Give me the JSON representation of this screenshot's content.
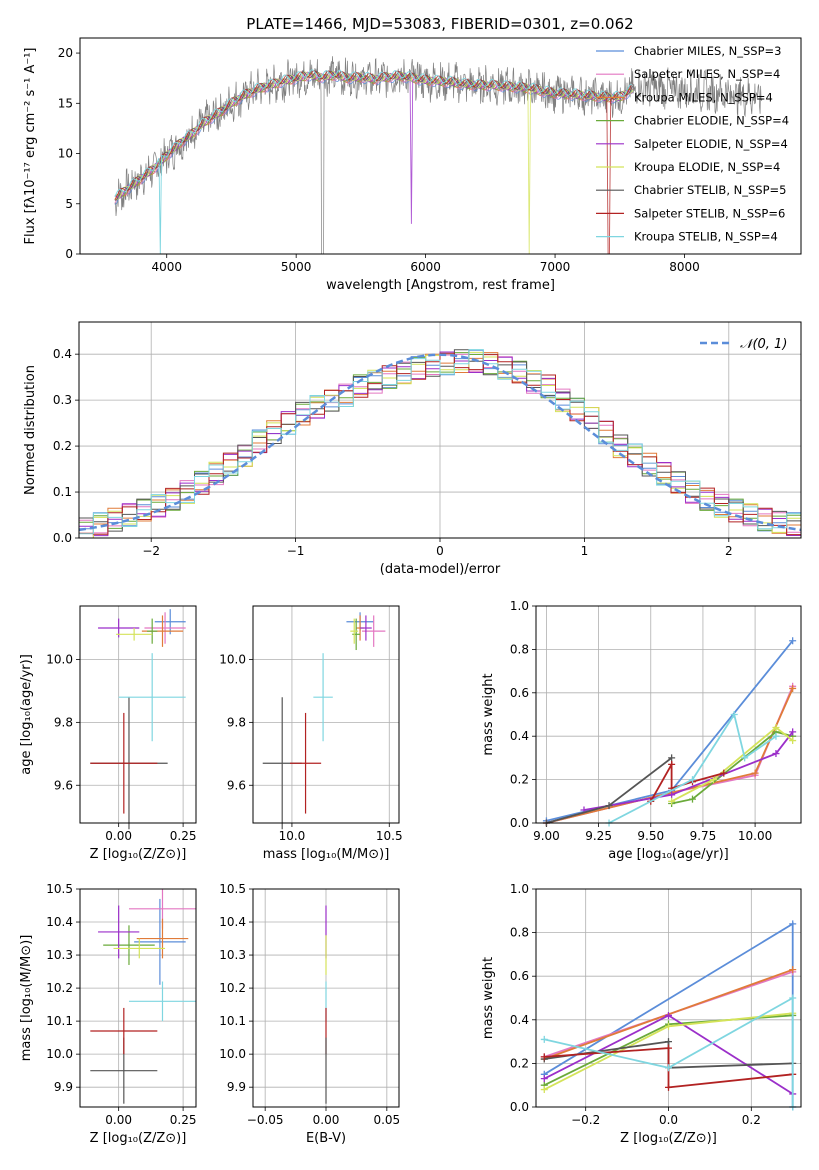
{
  "figure_title": "PLATE=1466, MJD=53083, FIBERID=0301, z=0.062",
  "colors": {
    "c1": "#5b8dd9",
    "c2": "#e377c2",
    "c3": "#e07b39",
    "c4": "#6aaa3a",
    "c5": "#9b2fc9",
    "c6": "#d4e35a",
    "c7": "#555555",
    "c8": "#b22222",
    "c9": "#7fd6e0",
    "data": "#808080",
    "grid": "#b0b0b0"
  },
  "chart_data": [
    {
      "type": "line",
      "id": "spectrum",
      "title": "PLATE=1466, MJD=53083, FIBERID=0301, z=0.062",
      "xlabel": "wavelength [Angstrom, rest frame]",
      "ylabel": "Flux [fλ10⁻¹⁷ erg cm⁻² s⁻¹ A⁻¹]",
      "xlim": [
        3330,
        8900
      ],
      "ylim": [
        0,
        21.5
      ],
      "xticks": [
        "4000",
        "5000",
        "6000",
        "7000",
        "8000"
      ],
      "yticks": [
        "0",
        "5",
        "10",
        "15",
        "20"
      ],
      "grid": false,
      "legend_position": "right",
      "legend": [
        "Chabrier MILES, N_SSP=3",
        "Salpeter MILES, N_SSP=4",
        "Kroupa MILES, N_SSP=4",
        "Chabrier ELODIE, N_SSP=4",
        "Salpeter ELODIE, N_SSP=4",
        "Kroupa ELODIE, N_SSP=4",
        "Chabrier STELIB, N_SSP=5",
        "Salpeter STELIB, N_SSP=6",
        "Kroupa STELIB, N_SSP=4"
      ],
      "continuum": {
        "x": [
          3600,
          3700,
          3800,
          3900,
          4000,
          4100,
          4200,
          4300,
          4400,
          4500,
          4600,
          4700,
          4800,
          4900,
          5000,
          5100,
          5200,
          5300,
          5400,
          5500,
          5600,
          5700,
          5800,
          5900,
          6000,
          6100,
          6200,
          6300,
          6400,
          6500,
          6600,
          6700,
          6800,
          6900,
          7000,
          7100,
          7200,
          7300,
          7400,
          7500,
          7600,
          7700,
          7800,
          7900,
          8000,
          8100,
          8200,
          8300,
          8400,
          8500,
          8600
        ],
        "y": [
          5.5,
          6.5,
          7.5,
          8.5,
          9.8,
          11.0,
          12.0,
          13.2,
          14.0,
          15.0,
          15.8,
          16.4,
          16.8,
          17.2,
          17.5,
          17.8,
          17.6,
          17.8,
          17.5,
          17.6,
          17.4,
          17.6,
          17.7,
          17.5,
          17.3,
          17.2,
          17.1,
          16.9,
          16.8,
          16.8,
          16.7,
          16.6,
          16.5,
          16.2,
          16.0,
          15.9,
          15.8,
          15.7,
          15.6,
          15.6,
          16.4,
          16.6,
          16.5,
          16.4,
          16.3,
          16.2,
          16.1,
          16.0,
          15.9,
          15.7,
          15.6
        ]
      }
    },
    {
      "type": "bar",
      "id": "residuals",
      "xlabel": "(data-model)/error",
      "ylabel": "Normed distribution",
      "xlim": [
        -2.5,
        2.5
      ],
      "ylim": [
        0,
        0.47
      ],
      "xticks": [
        "−2",
        "−1",
        "0",
        "1",
        "2"
      ],
      "yticks": [
        "0.0",
        "0.1",
        "0.2",
        "0.3",
        "0.4"
      ],
      "grid": true,
      "legend_position": "top-right",
      "legend": [
        "𝒩(0, 1)"
      ],
      "bin_centers": [
        -2.45,
        -2.35,
        -2.25,
        -2.15,
        -2.05,
        -1.95,
        -1.85,
        -1.75,
        -1.65,
        -1.55,
        -1.45,
        -1.35,
        -1.25,
        -1.15,
        -1.05,
        -0.95,
        -0.85,
        -0.75,
        -0.65,
        -0.55,
        -0.45,
        -0.35,
        -0.25,
        -0.15,
        -0.05,
        0.05,
        0.15,
        0.25,
        0.35,
        0.45,
        0.55,
        0.65,
        0.75,
        0.85,
        0.95,
        1.05,
        1.15,
        1.25,
        1.35,
        1.45,
        1.55,
        1.65,
        1.75,
        1.85,
        1.95,
        2.05,
        2.15,
        2.25,
        2.35,
        2.45
      ],
      "base_values": [
        0.02,
        0.03,
        0.04,
        0.05,
        0.06,
        0.07,
        0.085,
        0.1,
        0.12,
        0.14,
        0.16,
        0.18,
        0.21,
        0.23,
        0.25,
        0.27,
        0.285,
        0.3,
        0.31,
        0.33,
        0.34,
        0.35,
        0.36,
        0.37,
        0.375,
        0.38,
        0.385,
        0.385,
        0.38,
        0.37,
        0.36,
        0.34,
        0.33,
        0.3,
        0.28,
        0.26,
        0.23,
        0.2,
        0.18,
        0.16,
        0.14,
        0.12,
        0.1,
        0.085,
        0.07,
        0.06,
        0.05,
        0.04,
        0.035,
        0.03
      ],
      "reference_curve": "normal(0,1)"
    },
    {
      "type": "scatter",
      "id": "z-age",
      "xlabel": "Z [log₁₀(Z/Z⊙)]",
      "ylabel": "age  [log₁₀(age/yr)]",
      "xlim": [
        -0.15,
        0.3
      ],
      "ylim": [
        9.48,
        10.17
      ],
      "xticks": [
        "0.00",
        "0.25"
      ],
      "yticks": [
        "9.6",
        "9.8",
        "10.0"
      ],
      "grid": true,
      "points": [
        {
          "x": 0.2,
          "y": 10.12,
          "xerr": 0.06,
          "yerr": 0.04
        },
        {
          "x": 0.18,
          "y": 10.1,
          "xerr": 0.08,
          "yerr": 0.05
        },
        {
          "x": 0.17,
          "y": 10.09,
          "xerr": 0.08,
          "yerr": 0.05
        },
        {
          "x": 0.13,
          "y": 10.09,
          "xerr": 0.02,
          "yerr": 0.04
        },
        {
          "x": 0.0,
          "y": 10.1,
          "xerr": 0.08,
          "yerr": 0.03
        },
        {
          "x": 0.06,
          "y": 10.08,
          "xerr": 0.07,
          "yerr": 0.02
        },
        {
          "x": 0.04,
          "y": 9.67,
          "xerr": 0.15,
          "yerr": 0.21
        },
        {
          "x": 0.02,
          "y": 9.67,
          "xerr": 0.13,
          "yerr": 0.16
        },
        {
          "x": 0.13,
          "y": 9.88,
          "xerr": 0.13,
          "yerr": 0.14
        }
      ]
    },
    {
      "type": "scatter",
      "id": "mass-age",
      "xlabel": "mass [log₁₀(M/M⊙)]",
      "ylabel": "",
      "xlim": [
        9.8,
        10.55
      ],
      "ylim": [
        9.48,
        10.17
      ],
      "xticks": [
        "10.0",
        "10.5"
      ],
      "yticks": [
        "9.6",
        "9.8",
        "10.0"
      ],
      "grid": true,
      "points": [
        {
          "x": 10.35,
          "y": 10.12,
          "xerr": 0.07,
          "yerr": 0.03
        },
        {
          "x": 10.42,
          "y": 10.09,
          "xerr": 0.06,
          "yerr": 0.05
        },
        {
          "x": 10.35,
          "y": 10.1,
          "xerr": 0.02,
          "yerr": 0.04
        },
        {
          "x": 10.33,
          "y": 10.08,
          "xerr": 0.02,
          "yerr": 0.05
        },
        {
          "x": 10.38,
          "y": 10.1,
          "xerr": 0.03,
          "yerr": 0.04
        },
        {
          "x": 10.32,
          "y": 10.09,
          "xerr": 0.02,
          "yerr": 0.04
        },
        {
          "x": 9.95,
          "y": 9.67,
          "xerr": 0.1,
          "yerr": 0.21
        },
        {
          "x": 10.07,
          "y": 9.67,
          "xerr": 0.08,
          "yerr": 0.16
        },
        {
          "x": 10.16,
          "y": 9.88,
          "xerr": 0.05,
          "yerr": 0.14
        }
      ]
    },
    {
      "type": "line",
      "id": "age-weight",
      "xlabel": "age  [log₁₀(age/yr)]",
      "ylabel": "mass weight",
      "xlim": [
        8.95,
        10.22
      ],
      "ylim": [
        0,
        1
      ],
      "xticks": [
        "9.00",
        "9.25",
        "9.50",
        "9.75",
        "10.00"
      ],
      "yticks": [
        "0.0",
        "0.2",
        "0.4",
        "0.6",
        "0.8",
        "1.0"
      ],
      "grid": true,
      "series": [
        {
          "x": [
            9.0,
            9.6,
            10.18
          ],
          "y": [
            0.01,
            0.15,
            0.84
          ]
        },
        {
          "x": [
            9.0,
            9.6,
            10.0,
            10.18
          ],
          "y": [
            0.0,
            0.14,
            0.22,
            0.63
          ]
        },
        {
          "x": [
            9.0,
            9.6,
            10.0,
            10.18
          ],
          "y": [
            0.0,
            0.14,
            0.23,
            0.62
          ]
        },
        {
          "x": [
            9.6,
            9.7,
            10.1,
            10.18
          ],
          "y": [
            0.09,
            0.11,
            0.42,
            0.4
          ]
        },
        {
          "x": [
            9.18,
            9.6,
            10.1,
            10.18
          ],
          "y": [
            0.06,
            0.13,
            0.32,
            0.42
          ]
        },
        {
          "x": [
            9.6,
            9.8,
            10.1,
            10.18
          ],
          "y": [
            0.1,
            0.2,
            0.44,
            0.38
          ]
        },
        {
          "x": [
            9.0,
            9.3,
            9.6
          ],
          "y": [
            0.0,
            0.08,
            0.3
          ]
        },
        {
          "x": [
            9.5,
            9.6,
            9.6,
            9.7,
            9.85
          ],
          "y": [
            0.1,
            0.27,
            0.16,
            0.19,
            0.23
          ]
        },
        {
          "x": [
            9.3,
            9.7,
            9.9,
            9.95,
            10.1
          ],
          "y": [
            0.0,
            0.2,
            0.5,
            0.3,
            0.4
          ]
        }
      ]
    },
    {
      "type": "scatter",
      "id": "z-mass",
      "xlabel": "Z [log₁₀(Z/Z⊙)]",
      "ylabel": "mass [log₁₀(M/M⊙)]",
      "xlim": [
        -0.15,
        0.3
      ],
      "ylim": [
        9.84,
        10.5
      ],
      "xticks": [
        "0.00",
        "0.25"
      ],
      "yticks": [
        "9.9",
        "10.0",
        "10.1",
        "10.2",
        "10.3",
        "10.4",
        "10.5"
      ],
      "grid": true,
      "points": [
        {
          "x": 0.16,
          "y": 10.34,
          "xerr": 0.1,
          "yerr": 0.13
        },
        {
          "x": 0.17,
          "y": 10.44,
          "xerr": 0.13,
          "yerr": 0.06
        },
        {
          "x": 0.17,
          "y": 10.35,
          "xerr": 0.1,
          "yerr": 0.06
        },
        {
          "x": 0.04,
          "y": 10.33,
          "xerr": 0.1,
          "yerr": 0.06
        },
        {
          "x": 0.0,
          "y": 10.37,
          "xerr": 0.08,
          "yerr": 0.08
        },
        {
          "x": 0.08,
          "y": 10.32,
          "xerr": 0.1,
          "yerr": 0.03
        },
        {
          "x": 0.02,
          "y": 9.95,
          "xerr": 0.13,
          "yerr": 0.1
        },
        {
          "x": 0.02,
          "y": 10.07,
          "xerr": 0.13,
          "yerr": 0.07
        },
        {
          "x": 0.17,
          "y": 10.16,
          "xerr": 0.13,
          "yerr": 0.06
        }
      ]
    },
    {
      "type": "scatter",
      "id": "ebv-mass",
      "xlabel": "E(B-V)",
      "ylabel": "",
      "xlim": [
        -0.06,
        0.06
      ],
      "ylim": [
        9.84,
        10.5
      ],
      "xticks": [
        "−0.05",
        "0.00",
        "0.05"
      ],
      "yticks": [
        "9.9",
        "10.0",
        "10.1",
        "10.2",
        "10.3",
        "10.4",
        "10.5"
      ],
      "grid": true,
      "points": [
        {
          "x": 0.0,
          "y": 10.37,
          "xerr": 0,
          "yerr": 0.08
        },
        {
          "x": 0.0,
          "y": 10.3,
          "xerr": 0,
          "yerr": 0.06
        },
        {
          "x": 0.0,
          "y": 10.16,
          "xerr": 0,
          "yerr": 0.06
        },
        {
          "x": 0.0,
          "y": 10.07,
          "xerr": 0,
          "yerr": 0.07
        },
        {
          "x": 0.0,
          "y": 9.95,
          "xerr": 0,
          "yerr": 0.1
        }
      ]
    },
    {
      "type": "line",
      "id": "z-weight",
      "xlabel": "Z [log₁₀(Z/Z⊙)]",
      "ylabel": "mass weight",
      "xlim": [
        -0.32,
        0.32
      ],
      "ylim": [
        0,
        1
      ],
      "xticks": [
        "−0.2",
        "0.0",
        "0.2"
      ],
      "yticks": [
        "0.0",
        "0.2",
        "0.4",
        "0.6",
        "0.8",
        "1.0"
      ],
      "grid": true,
      "series": [
        {
          "x": [
            -0.3,
            0.3,
            0.3
          ],
          "y": [
            0.15,
            0.84,
            0.0
          ]
        },
        {
          "x": [
            -0.3,
            0.3
          ],
          "y": [
            0.23,
            0.62
          ]
        },
        {
          "x": [
            -0.3,
            0.3
          ],
          "y": [
            0.22,
            0.63
          ]
        },
        {
          "x": [
            -0.3,
            0.0,
            0.3
          ],
          "y": [
            0.1,
            0.38,
            0.42
          ]
        },
        {
          "x": [
            -0.3,
            0.0,
            0.3
          ],
          "y": [
            0.13,
            0.42,
            0.06
          ]
        },
        {
          "x": [
            -0.3,
            0.0,
            0.3
          ],
          "y": [
            0.08,
            0.37,
            0.43
          ]
        },
        {
          "x": [
            -0.3,
            0.0,
            0.0,
            0.3
          ],
          "y": [
            0.22,
            0.3,
            0.18,
            0.2
          ]
        },
        {
          "x": [
            -0.3,
            0.0,
            0.0,
            0.3
          ],
          "y": [
            0.23,
            0.27,
            0.09,
            0.15
          ]
        },
        {
          "x": [
            -0.3,
            0.0,
            0.3,
            0.3
          ],
          "y": [
            0.31,
            0.18,
            0.5,
            0.0
          ]
        }
      ]
    }
  ]
}
